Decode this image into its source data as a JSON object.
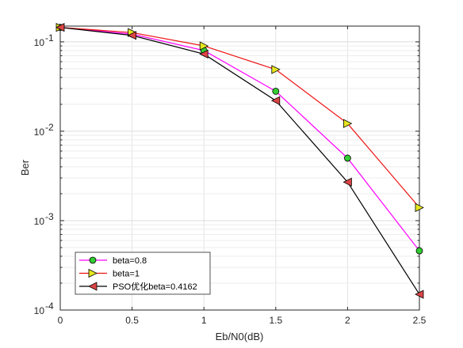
{
  "chart_data": {
    "type": "line",
    "title": "",
    "xlabel": "Eb/N0(dB)",
    "ylabel": "Ber",
    "x": [
      0,
      0.5,
      1,
      1.5,
      2,
      2.5
    ],
    "xlim": [
      0,
      2.5
    ],
    "ylim": [
      0.0001,
      0.15
    ],
    "yscale": "log",
    "grid": true,
    "legend_position": "bottom-left",
    "x_ticks": [
      "0",
      "0.5",
      "1",
      "1.5",
      "2",
      "2.5"
    ],
    "y_ticks": [
      {
        "base": "10",
        "exp": "-1"
      },
      {
        "base": "10",
        "exp": "-2"
      },
      {
        "base": "10",
        "exp": "-3"
      },
      {
        "base": "10",
        "exp": "-4"
      }
    ],
    "series": [
      {
        "name": "beta=0.8",
        "marker": "circle",
        "line_color": "#ff00ff",
        "marker_color": "#33cc33",
        "values": [
          0.145,
          0.122,
          0.08,
          0.028,
          0.005,
          0.00046
        ]
      },
      {
        "name": "beta=1",
        "marker": "triangle-right",
        "line_color": "#ee1111",
        "marker_color": "#e6e620",
        "values": [
          0.145,
          0.127,
          0.09,
          0.049,
          0.0122,
          0.0014
        ]
      },
      {
        "name": "PSO优化beta=0.4162",
        "marker": "triangle-left",
        "line_color": "#000000",
        "marker_color": "#dd4444",
        "values": [
          0.145,
          0.118,
          0.073,
          0.022,
          0.0027,
          0.00015
        ]
      }
    ]
  }
}
